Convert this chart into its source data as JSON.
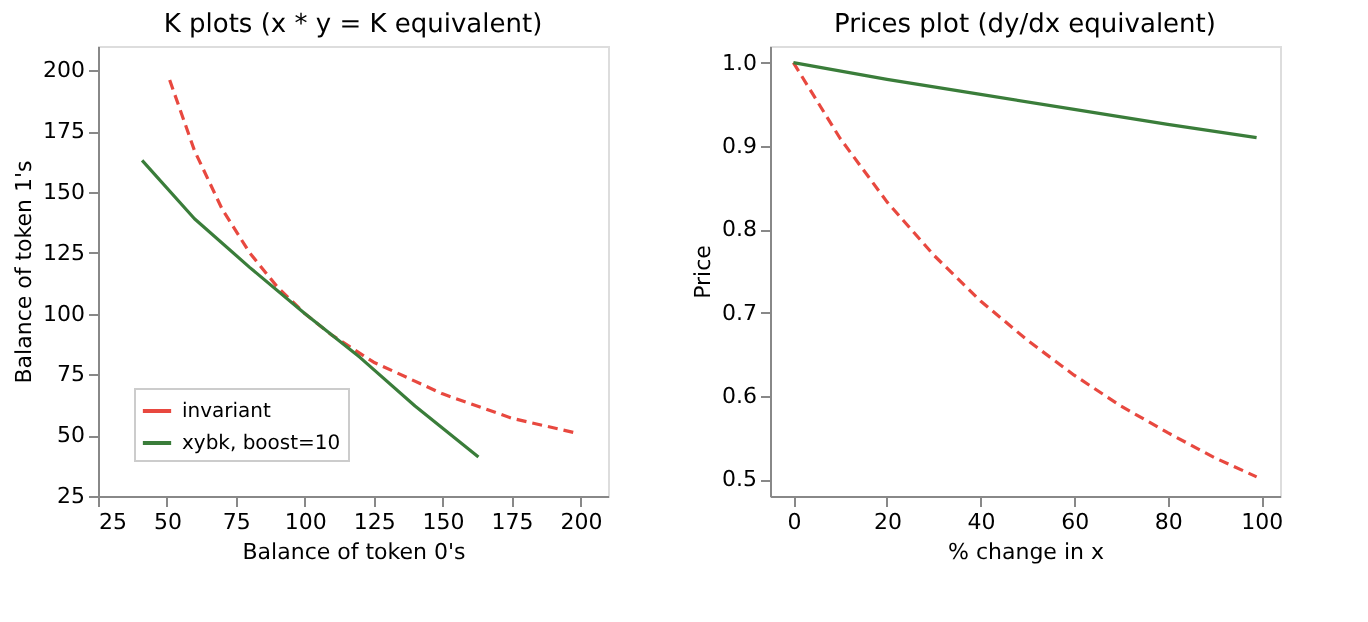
{
  "chart_data": [
    {
      "type": "line",
      "title": "K plots (x * y = K equivalent)",
      "xlabel": "Balance of token 0's",
      "ylabel": "Balance of token 1's",
      "xlim": [
        25,
        210
      ],
      "ylim": [
        25,
        210
      ],
      "xticks": [
        25,
        50,
        75,
        100,
        125,
        150,
        175,
        200
      ],
      "yticks": [
        25,
        50,
        75,
        100,
        125,
        150,
        175,
        200
      ],
      "grid": false,
      "legend": "bottom left",
      "series": [
        {
          "name": "invariant",
          "color": "#e8483f",
          "line_style": "dashed",
          "x": [
            51,
            60,
            70,
            80,
            90,
            100,
            110,
            125,
            150,
            175,
            198
          ],
          "values": [
            196,
            167,
            143,
            125,
            111,
            100,
            91,
            80,
            67,
            57,
            51
          ]
        },
        {
          "name": "xybk, boost=10",
          "color": "#3a7d3a",
          "line_style": "solid",
          "x": [
            41,
            60,
            80,
            100,
            120,
            140,
            163
          ],
          "values": [
            163,
            139,
            119,
            100,
            82,
            62,
            41
          ]
        }
      ]
    },
    {
      "type": "line",
      "title": "Prices plot (dy/dx equivalent)",
      "xlabel": "% change in x",
      "ylabel": "Price",
      "xlim": [
        -5,
        104
      ],
      "ylim": [
        0.48,
        1.02
      ],
      "xticks": [
        0,
        20,
        40,
        60,
        80,
        100
      ],
      "yticks": [
        {
          "value": 0.5,
          "label": "0.5"
        },
        {
          "value": 0.6,
          "label": "0.6"
        },
        {
          "value": 0.7,
          "label": "0.7"
        },
        {
          "value": 0.8,
          "label": "0.8"
        },
        {
          "value": 0.9,
          "label": "0.9"
        },
        {
          "value": 1.0,
          "label": "1.0"
        }
      ],
      "grid": false,
      "legend": "bottom left",
      "series": [
        {
          "name": "invariant",
          "color": "#e8483f",
          "line_style": "dashed",
          "x": [
            0,
            10,
            20,
            30,
            40,
            50,
            60,
            70,
            80,
            90,
            99
          ],
          "values": [
            1.0,
            0.909,
            0.833,
            0.769,
            0.714,
            0.667,
            0.625,
            0.588,
            0.556,
            0.526,
            0.503
          ]
        },
        {
          "name": "xybk, boost=10",
          "color": "#3a7d3a",
          "line_style": "solid",
          "x": [
            0,
            20,
            40,
            60,
            80,
            99
          ],
          "values": [
            1.0,
            0.98,
            0.962,
            0.944,
            0.926,
            0.91
          ]
        }
      ]
    }
  ]
}
